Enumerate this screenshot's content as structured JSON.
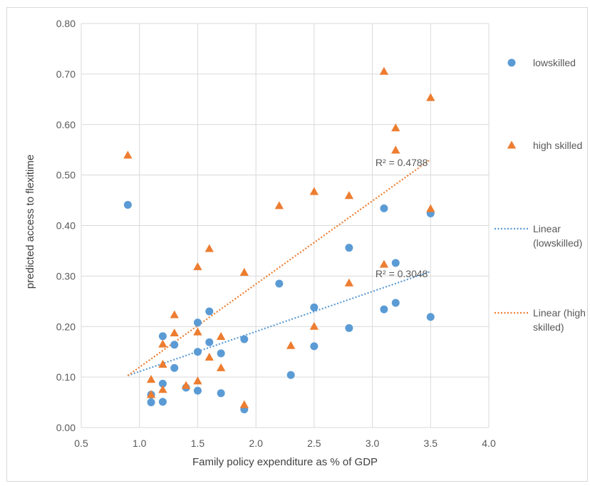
{
  "chart_data": {
    "type": "scatter",
    "xlabel": "Family policy expenditure as % of GDP",
    "ylabel": "predicted access to flexitime",
    "xlim": [
      0.5,
      4.0
    ],
    "ylim": [
      0.0,
      0.8
    ],
    "x_ticks": [
      "0.5",
      "1.0",
      "1.5",
      "2.0",
      "2.5",
      "3.0",
      "3.5",
      "4.0"
    ],
    "y_ticks": [
      "0.00",
      "0.10",
      "0.20",
      "0.30",
      "0.40",
      "0.50",
      "0.60",
      "0.70",
      "0.80"
    ],
    "grid": true,
    "legend_position": "right",
    "series": [
      {
        "name": "lowskilled",
        "marker": "circle",
        "color": "#5b9bd5",
        "points": [
          [
            0.9,
            0.441
          ],
          [
            1.1,
            0.065
          ],
          [
            1.1,
            0.05
          ],
          [
            1.2,
            0.181
          ],
          [
            1.2,
            0.087
          ],
          [
            1.2,
            0.051
          ],
          [
            1.3,
            0.164
          ],
          [
            1.3,
            0.118
          ],
          [
            1.4,
            0.079
          ],
          [
            1.5,
            0.208
          ],
          [
            1.5,
            0.15
          ],
          [
            1.5,
            0.073
          ],
          [
            1.6,
            0.23
          ],
          [
            1.6,
            0.169
          ],
          [
            1.7,
            0.147
          ],
          [
            1.7,
            0.068
          ],
          [
            1.9,
            0.175
          ],
          [
            1.9,
            0.036
          ],
          [
            2.2,
            0.285
          ],
          [
            2.3,
            0.104
          ],
          [
            2.5,
            0.238
          ],
          [
            2.5,
            0.161
          ],
          [
            2.8,
            0.356
          ],
          [
            2.8,
            0.197
          ],
          [
            3.1,
            0.434
          ],
          [
            3.1,
            0.234
          ],
          [
            3.2,
            0.326
          ],
          [
            3.2,
            0.247
          ],
          [
            3.5,
            0.424
          ],
          [
            3.5,
            0.219
          ]
        ]
      },
      {
        "name": "high skilled",
        "marker": "triangle",
        "color": "#ed7d31",
        "points": [
          [
            0.9,
            0.539
          ],
          [
            1.1,
            0.095
          ],
          [
            1.1,
            0.065
          ],
          [
            1.2,
            0.165
          ],
          [
            1.2,
            0.125
          ],
          [
            1.2,
            0.075
          ],
          [
            1.3,
            0.223
          ],
          [
            1.3,
            0.187
          ],
          [
            1.4,
            0.083
          ],
          [
            1.5,
            0.318
          ],
          [
            1.5,
            0.189
          ],
          [
            1.5,
            0.092
          ],
          [
            1.6,
            0.354
          ],
          [
            1.6,
            0.139
          ],
          [
            1.7,
            0.18
          ],
          [
            1.7,
            0.118
          ],
          [
            1.9,
            0.307
          ],
          [
            1.9,
            0.045
          ],
          [
            2.2,
            0.439
          ],
          [
            2.3,
            0.162
          ],
          [
            2.5,
            0.467
          ],
          [
            2.5,
            0.2
          ],
          [
            2.8,
            0.459
          ],
          [
            2.8,
            0.286
          ],
          [
            3.1,
            0.705
          ],
          [
            3.1,
            0.323
          ],
          [
            3.2,
            0.593
          ],
          [
            3.2,
            0.549
          ],
          [
            3.5,
            0.653
          ],
          [
            3.5,
            0.433
          ]
        ]
      }
    ],
    "trendlines": [
      {
        "name": "Linear (lowskilled)",
        "legend_lines": [
          "Linear",
          "(lowskilled)"
        ],
        "color": "#5b9bd5",
        "x_range": [
          0.9,
          3.5
        ],
        "y_range": [
          0.103,
          0.309
        ],
        "r2_label": "R² = 0.3048",
        "r2_at": [
          3.1,
          0.305
        ]
      },
      {
        "name": "Linear (high skilled)",
        "legend_lines": [
          "Linear (high",
          "skilled)"
        ],
        "color": "#ed7d31",
        "x_range": [
          0.9,
          3.5
        ],
        "y_range": [
          0.103,
          0.531
        ],
        "r2_label": "R² = 0.4788",
        "r2_at": [
          3.1,
          0.525
        ]
      }
    ]
  }
}
